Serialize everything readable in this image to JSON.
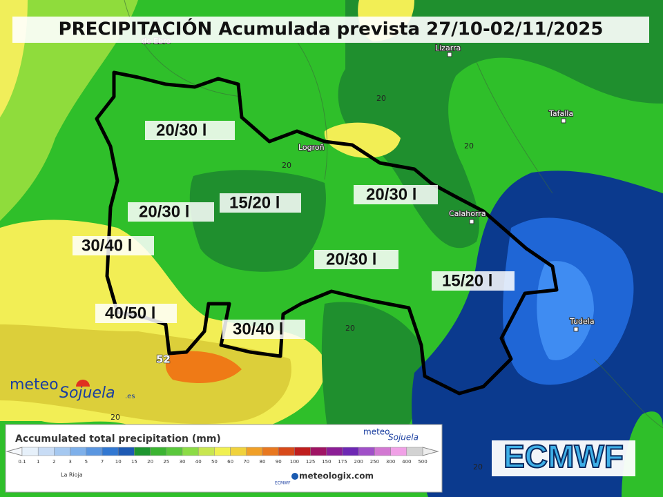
{
  "header": {
    "title": "PRECIPITACIÓN Acumulada prevista 27/10-02/11/2025"
  },
  "towns": [
    "de Ebro",
    "Lizarra",
    "Tafalla",
    "Logroñ",
    "Calahorra",
    "Tudela"
  ],
  "contour_labels": [
    "20",
    "20",
    "20",
    "20",
    "20",
    "20",
    "52"
  ],
  "region_labels": [
    "20/30 l",
    "15/20 l",
    "20/30 l",
    "30/40 l",
    "20/30 l",
    "20/30 l",
    "15/20 l",
    "40/50 l",
    "30/40 l"
  ],
  "legend": {
    "title": "Accumulated total precipitation (mm)",
    "scale": [
      0.1,
      1,
      2,
      3,
      5,
      7,
      10,
      15,
      20,
      25,
      30,
      40,
      50,
      60,
      70,
      80,
      90,
      100,
      125,
      150,
      175,
      200,
      250,
      300,
      400,
      500
    ],
    "region": "La Rioja",
    "source": "meteologix.com",
    "model_small": "ECMWF"
  },
  "logo": {
    "top": "meteo",
    "bottom": "Sojuela",
    "suffix": ".es"
  },
  "model": "ECMWF"
}
